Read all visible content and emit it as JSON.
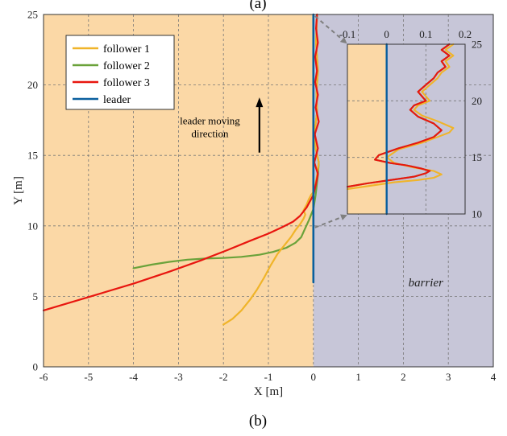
{
  "panel_labels": {
    "top": "(a)",
    "bottom": "(b)"
  },
  "colors": {
    "follower_region": "#fbd8a6",
    "barrier_region": "#c7c6d8",
    "follower1": "#f0b429",
    "follower2": "#6aa23a",
    "follower3": "#e8160f",
    "leader": "#0a5f9e",
    "connector": "#7f7f7f"
  },
  "chart_data": [
    {
      "type": "line",
      "xlabel": "X [m]",
      "ylabel": "Y [m]",
      "xlim": [
        -6,
        4
      ],
      "ylim": [
        0,
        25
      ],
      "xticks": [
        "-6",
        "-5",
        "-4",
        "-3",
        "-2",
        "-1",
        "0",
        "1",
        "2",
        "3",
        "4"
      ],
      "yticks": [
        "0",
        "5",
        "10",
        "15",
        "20",
        "25"
      ],
      "grid": true,
      "legend_position": "top-left",
      "regions": [
        {
          "x_range": [
            -6,
            0
          ],
          "color": "follower_region"
        },
        {
          "x_range": [
            0,
            4
          ],
          "color": "barrier_region",
          "label": "barrier"
        }
      ],
      "annotation": {
        "text_lines": [
          "leader moving",
          "direction"
        ],
        "arrow_from": [
          -1.2,
          15.2
        ],
        "arrow_to": [
          -1.2,
          19.0
        ]
      },
      "series": [
        {
          "name": "follower 1",
          "color": "follower1",
          "x": [
            -2.0,
            -1.8,
            -1.6,
            -1.4,
            -1.25,
            -1.1,
            -0.95,
            -0.8,
            -0.65,
            -0.5,
            -0.4,
            -0.3,
            -0.22,
            -0.18,
            -0.22,
            -0.15,
            -0.1,
            -0.05,
            0.0,
            0.02,
            0.05,
            0.08,
            0.12,
            0.05,
            0.03,
            0.08,
            0.07,
            0.1,
            0.06,
            0.08
          ],
          "y": [
            3.0,
            3.4,
            4.0,
            4.8,
            5.5,
            6.3,
            7.2,
            8.0,
            8.6,
            9.2,
            9.7,
            10.1,
            10.5,
            10.8,
            11.1,
            11.5,
            11.9,
            12.2,
            12.4,
            12.7,
            13.0,
            13.6,
            14.5,
            15.5,
            16.8,
            18.0,
            19.5,
            21.0,
            23.0,
            25.0
          ]
        },
        {
          "name": "follower 2",
          "color": "follower2",
          "x": [
            -4.0,
            -3.6,
            -3.2,
            -2.8,
            -2.4,
            -2.0,
            -1.6,
            -1.2,
            -0.9,
            -0.6,
            -0.4,
            -0.27,
            -0.2,
            -0.1,
            0.0,
            0.05,
            0.1,
            0.12,
            0.05,
            0.03,
            0.08,
            0.07,
            0.1,
            0.06,
            0.08
          ],
          "y": [
            7.0,
            7.25,
            7.45,
            7.6,
            7.68,
            7.72,
            7.8,
            7.95,
            8.15,
            8.45,
            8.8,
            9.2,
            9.7,
            10.4,
            11.2,
            12.2,
            13.6,
            14.5,
            15.5,
            16.8,
            18.0,
            19.5,
            21.0,
            23.0,
            25.0
          ]
        },
        {
          "name": "follower 3",
          "color": "follower3",
          "x": [
            -6.0,
            -5.0,
            -4.0,
            -3.2,
            -2.5,
            -1.9,
            -1.4,
            -1.0,
            -0.7,
            -0.45,
            -0.3,
            -0.15,
            0.0,
            0.06,
            0.1,
            0.02,
            0.1,
            0.03,
            0.12,
            0.05,
            0.1,
            0.04,
            0.08,
            0.04,
            0.1,
            0.06,
            0.08
          ],
          "y": [
            4.0,
            4.95,
            5.9,
            6.75,
            7.55,
            8.3,
            8.95,
            9.45,
            9.9,
            10.3,
            10.7,
            11.3,
            12.2,
            13.0,
            13.7,
            14.5,
            15.5,
            16.5,
            17.4,
            18.4,
            19.3,
            20.2,
            21.0,
            22.0,
            23.0,
            24.0,
            25.0
          ]
        },
        {
          "name": "leader",
          "color": "leader",
          "x": [
            0,
            0
          ],
          "y": [
            6.0,
            25.0
          ]
        }
      ]
    },
    {
      "type": "line",
      "inset_of": 0,
      "xlim": [
        -0.1,
        0.2
      ],
      "ylim": [
        10,
        25
      ],
      "xticks": [
        "-0.1",
        "0",
        "0.1",
        "0.2"
      ],
      "yticks": [
        "10",
        "15",
        "20",
        "25"
      ],
      "grid": true,
      "regions": [
        {
          "x_range": [
            -0.1,
            0
          ],
          "color": "follower_region"
        },
        {
          "x_range": [
            0,
            0.2
          ],
          "color": "barrier_region"
        }
      ],
      "series": [
        {
          "name": "follower 1",
          "color": "follower1",
          "x": [
            -0.1,
            -0.04,
            0.02,
            0.08,
            0.12,
            0.14,
            0.12,
            0.07,
            0.02,
            0.0,
            0.03,
            0.09,
            0.13,
            0.16,
            0.17,
            0.13,
            0.09,
            0.07,
            0.08,
            0.11,
            0.09,
            0.11,
            0.13,
            0.14,
            0.16,
            0.15,
            0.17,
            0.15,
            0.17
          ],
          "y": [
            12.2,
            12.5,
            12.8,
            13.0,
            13.2,
            13.5,
            13.8,
            14.1,
            14.5,
            15.0,
            15.7,
            16.3,
            16.8,
            17.2,
            17.6,
            18.2,
            18.7,
            19.2,
            19.6,
            20.0,
            20.8,
            21.4,
            22.0,
            22.5,
            23.0,
            23.5,
            24.0,
            24.5,
            25.0
          ]
        },
        {
          "name": "follower 2",
          "color": "follower2",
          "x": [
            -0.1,
            -0.05,
            0.01,
            0.07,
            0.1,
            0.11,
            0.09,
            0.05,
            0.01,
            -0.03,
            -0.02,
            0.03,
            0.08,
            0.12,
            0.14,
            0.12,
            0.08,
            0.06,
            0.07,
            0.1,
            0.08,
            0.1,
            0.12,
            0.13,
            0.15,
            0.14,
            0.16,
            0.14,
            0.16
          ],
          "y": [
            12.4,
            12.7,
            13.0,
            13.3,
            13.6,
            13.8,
            14.0,
            14.3,
            14.5,
            14.8,
            15.2,
            15.8,
            16.3,
            16.8,
            17.4,
            18.0,
            18.6,
            19.2,
            19.6,
            20.0,
            20.8,
            21.4,
            22.0,
            22.5,
            23.0,
            23.5,
            24.0,
            24.5,
            25.0
          ]
        },
        {
          "name": "follower 3",
          "color": "follower3",
          "x": [
            -0.1,
            -0.05,
            0.01,
            0.07,
            0.1,
            0.11,
            0.09,
            0.05,
            0.01,
            -0.03,
            -0.02,
            0.03,
            0.08,
            0.12,
            0.14,
            0.12,
            0.08,
            0.06,
            0.07,
            0.1,
            0.08,
            0.1,
            0.12,
            0.13,
            0.15,
            0.14,
            0.16,
            0.14,
            0.16
          ],
          "y": [
            12.4,
            12.7,
            13.0,
            13.3,
            13.6,
            13.8,
            14.0,
            14.3,
            14.5,
            14.8,
            15.2,
            15.8,
            16.3,
            16.8,
            17.4,
            18.0,
            18.6,
            19.2,
            19.6,
            20.0,
            20.8,
            21.4,
            22.0,
            22.5,
            23.0,
            23.5,
            24.0,
            24.5,
            25.0
          ]
        },
        {
          "name": "leader",
          "color": "leader",
          "x": [
            0,
            0
          ],
          "y": [
            10,
            25
          ]
        }
      ]
    }
  ]
}
